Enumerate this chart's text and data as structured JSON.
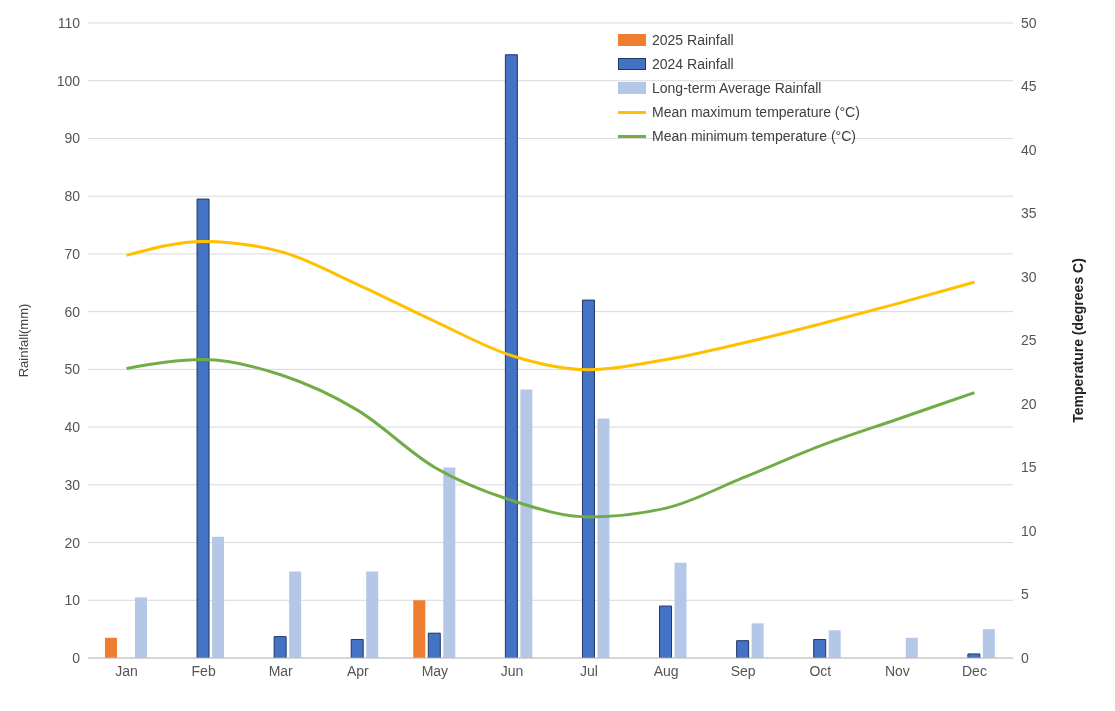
{
  "chart_data": {
    "type": "bar",
    "ylabel": "Rainfall(mm)",
    "y2label": "Temperature (degrees C)",
    "categories": [
      "Jan",
      "Feb",
      "Mar",
      "Apr",
      "May",
      "Jun",
      "Jul",
      "Aug",
      "Sep",
      "Oct",
      "Nov",
      "Dec"
    ],
    "series": [
      {
        "name": "2025 Rainfall",
        "color": "#ed7d31",
        "values": [
          3.5,
          0,
          0,
          0,
          10,
          null,
          null,
          null,
          null,
          null,
          null,
          null
        ]
      },
      {
        "name": "2024 Rainfall",
        "color": "#4472c4",
        "values": [
          null,
          79.5,
          3.7,
          3.2,
          4.3,
          104.5,
          62,
          9,
          3,
          3.2,
          0,
          0.7
        ]
      },
      {
        "name": "Long-term Average Rainfall",
        "color": "#b4c7e7",
        "values": [
          10.5,
          21,
          15,
          15,
          33,
          46.5,
          41.5,
          16.5,
          6,
          4.8,
          3.5,
          5
        ]
      },
      {
        "name": "Mean maximum temperature (°C)",
        "type": "line",
        "axis": "y2",
        "color": "#ffc000",
        "values": [
          31.7,
          32.8,
          32,
          29.4,
          26.5,
          23.8,
          22.7,
          23.5,
          24.8,
          26.3,
          27.9,
          29.6
        ]
      },
      {
        "name": "Mean minimum temperature (°C)",
        "type": "line",
        "axis": "y2",
        "color": "#70ad47",
        "values": [
          22.8,
          23.5,
          22.3,
          19.5,
          15,
          12.4,
          11.1,
          11.8,
          14.2,
          16.7,
          18.8,
          20.9
        ]
      }
    ],
    "ylim": [
      0,
      110
    ],
    "yticks": [
      0,
      10,
      20,
      30,
      40,
      50,
      60,
      70,
      80,
      90,
      100,
      110
    ],
    "y2lim": [
      0,
      50
    ],
    "y2ticks": [
      0,
      5,
      10,
      15,
      20,
      25,
      30,
      35,
      40,
      45,
      50
    ],
    "grid": "y",
    "legend": "top right",
    "marker": "none",
    "line_style": "solid"
  }
}
